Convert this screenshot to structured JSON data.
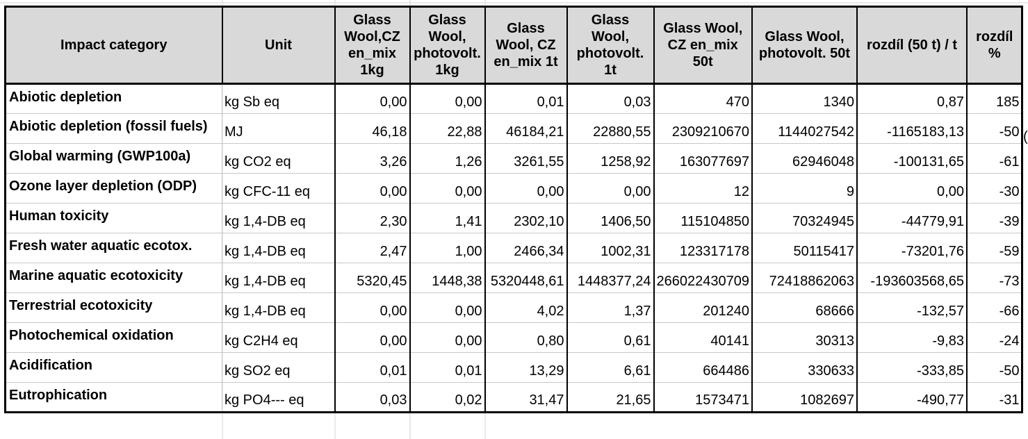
{
  "table": {
    "headers": [
      "Impact category",
      "Unit",
      "Glass\nWool,CZ\nen_mix\n1kg",
      "Glass\nWool,\nphotovolt.\n1kg",
      "Glass\nWool, CZ\nen_mix 1t",
      "Glass\nWool,\nphotovolt.\n1t",
      "Glass Wool,\nCZ en_mix\n50t",
      "Glass Wool,\nphotovolt. 50t",
      "rozdíl (50 t) / t",
      "rozdíl\n%"
    ],
    "rows": [
      [
        "Abiotic depletion",
        "kg Sb eq",
        "0,00",
        "0,00",
        "0,01",
        "0,03",
        "470",
        "1340",
        "0,87",
        "185"
      ],
      [
        "Abiotic depletion (fossil fuels)",
        "MJ",
        "46,18",
        "22,88",
        "46184,21",
        "22880,55",
        "2309210670",
        "1144027542",
        "-1165183,13",
        "-50"
      ],
      [
        "Global warming (GWP100a)",
        "kg CO2 eq",
        "3,26",
        "1,26",
        "3261,55",
        "1258,92",
        "163077697",
        "62946048",
        "-100131,65",
        "-61"
      ],
      [
        "Ozone layer depletion (ODP)",
        "kg CFC-11 eq",
        "0,00",
        "0,00",
        "0,00",
        "0,00",
        "12",
        "9",
        "0,00",
        "-30"
      ],
      [
        "Human toxicity",
        "kg 1,4-DB eq",
        "2,30",
        "1,41",
        "2302,10",
        "1406,50",
        "115104850",
        "70324945",
        "-44779,91",
        "-39"
      ],
      [
        "Fresh water aquatic ecotox.",
        "kg 1,4-DB eq",
        "2,47",
        "1,00",
        "2466,34",
        "1002,31",
        "123317178",
        "50115417",
        "-73201,76",
        "-59"
      ],
      [
        "Marine aquatic ecotoxicity",
        "kg 1,4-DB eq",
        "5320,45",
        "1448,38",
        "5320448,61",
        "1448377,24",
        "266022430709",
        "72418862063",
        "-193603568,65",
        "-73"
      ],
      [
        "Terrestrial ecotoxicity",
        "kg 1,4-DB eq",
        "0,00",
        "0,00",
        "4,02",
        "1,37",
        "201240",
        "68666",
        "-132,57",
        "-66"
      ],
      [
        "Photochemical oxidation",
        "kg C2H4 eq",
        "0,00",
        "0,00",
        "0,80",
        "0,61",
        "40141",
        "30313",
        "-9,83",
        "-24"
      ],
      [
        "Acidification",
        "kg SO2 eq",
        "0,01",
        "0,01",
        "13,29",
        "6,61",
        "664486",
        "330633",
        "-333,85",
        "-50"
      ],
      [
        "Eutrophication",
        "kg PO4--- eq",
        "0,03",
        "0,02",
        "31,47",
        "21,65",
        "1573471",
        "1082697",
        "-490,77",
        "-31"
      ]
    ]
  },
  "overflow_fragment": "("
}
